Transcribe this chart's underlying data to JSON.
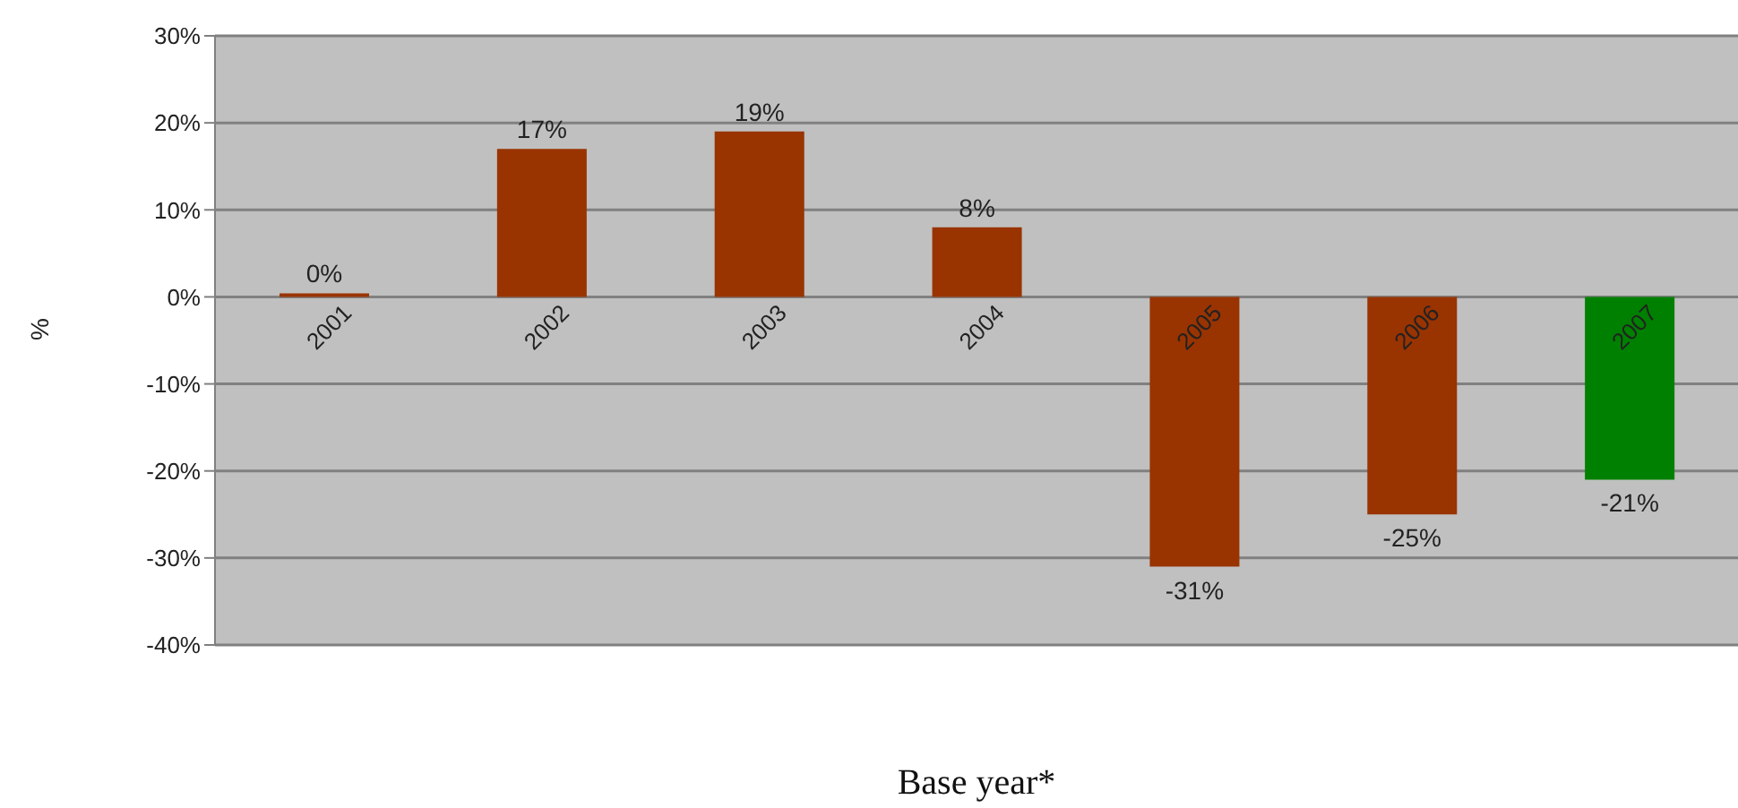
{
  "chart_data": {
    "type": "bar",
    "xlabel": "Base year*",
    "ylabel": "%",
    "categories": [
      "2001",
      "2002",
      "2003",
      "2004",
      "2005",
      "2006",
      "2007"
    ],
    "values": [
      0,
      17,
      19,
      8,
      -31,
      -25,
      -21
    ],
    "colors": [
      "#993300",
      "#993300",
      "#993300",
      "#993300",
      "#993300",
      "#993300",
      "#008000"
    ],
    "value_labels": [
      "0%",
      "17%",
      "19%",
      "8%",
      "-31%",
      "-25%",
      "-21%"
    ],
    "ylim": [
      -40,
      30
    ],
    "yticks": [
      {
        "value": -40,
        "label": "-40%"
      },
      {
        "value": -30,
        "label": "-30%"
      },
      {
        "value": -20,
        "label": "-20%"
      },
      {
        "value": -10,
        "label": "-10%"
      },
      {
        "value": 0,
        "label": "0%"
      },
      {
        "value": 10,
        "label": "10%"
      },
      {
        "value": 20,
        "label": "20%"
      },
      {
        "value": 30,
        "label": "30%"
      }
    ],
    "grid": "y"
  }
}
